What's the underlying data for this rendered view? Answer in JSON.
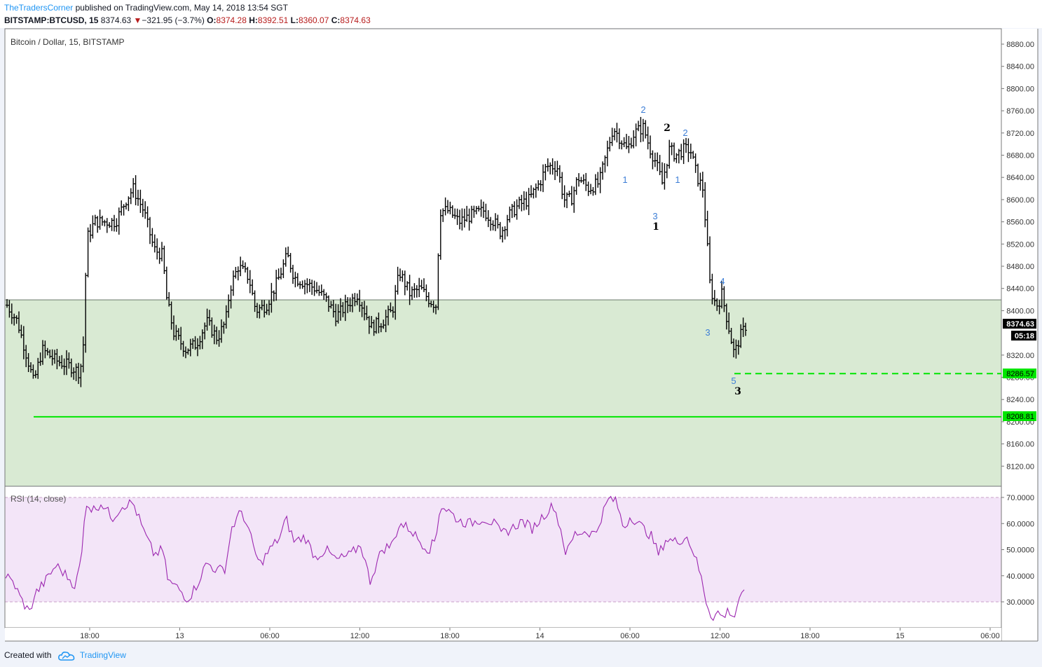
{
  "header": {
    "author": "TheTradersCorner",
    "published_text": " published on TradingView.com, May 14, 2018 13:54 SGT",
    "symbol": "BITSTAMP:BTCUSD, 15",
    "last": "8374.63",
    "change": "−321.95 (−3.7%)",
    "o_label": "O:",
    "o_value": "8374.28",
    "h_label": "H:",
    "h_value": "8392.51",
    "l_label": "L:",
    "l_value": "8360.07",
    "c_label": "C:",
    "c_value": "8374.63"
  },
  "footer": {
    "created_with": "Created with",
    "brand": "TradingView"
  },
  "colors": {
    "bar": "#000000",
    "zone_fill": "#d9ead3",
    "rsi_band": "#f3e5f8",
    "rsi_line": "#9c27b0",
    "support": "#00e600",
    "wave_blue": "#3d7ed6",
    "wave_black": "#000000"
  },
  "main": {
    "title": "Bitcoin / Dollar, 15, BITSTAMP",
    "price_ticks": [
      "8880.00",
      "8840.00",
      "8800.00",
      "8760.00",
      "8720.00",
      "8680.00",
      "8640.00",
      "8600.00",
      "8560.00",
      "8520.00",
      "8480.00",
      "8440.00",
      "8400.00",
      "8320.00",
      "8280.00",
      "8240.00",
      "8200.00",
      "8160.00",
      "8120.00"
    ],
    "current_price": "8374.63",
    "countdown": "05:18",
    "level_dashed": "8286.57",
    "level_solid": "8208.81",
    "time_labels": [
      "18:00",
      "13",
      "06:00",
      "12:00",
      "18:00",
      "14",
      "06:00",
      "12:00",
      "18:00",
      "15",
      "06:00"
    ],
    "wave_labels": [
      {
        "text": "2",
        "color": "blue"
      },
      {
        "text": "2",
        "color": "black"
      },
      {
        "text": "2",
        "color": "blue"
      },
      {
        "text": "1",
        "color": "blue"
      },
      {
        "text": "1",
        "color": "blue"
      },
      {
        "text": "3",
        "color": "blue"
      },
      {
        "text": "1",
        "color": "black"
      },
      {
        "text": "4",
        "color": "blue"
      },
      {
        "text": "3",
        "color": "blue"
      },
      {
        "text": "5",
        "color": "blue"
      },
      {
        "text": "3",
        "color": "black"
      }
    ]
  },
  "rsi": {
    "title": "RSI (14, close)",
    "ticks": [
      "70.0000",
      "60.0000",
      "50.0000",
      "40.0000",
      "30.0000"
    ]
  },
  "chart_data": {
    "type": "line",
    "price_ohlc_close_profile": [
      {
        "t": "12 18:00",
        "p": 8340
      },
      {
        "t": "12 21:00",
        "p": 8600
      },
      {
        "t": "13 00:00",
        "p": 8350
      },
      {
        "t": "13 03:00",
        "p": 8330
      },
      {
        "t": "13 06:00",
        "p": 8480
      },
      {
        "t": "13 12:00",
        "p": 8400
      },
      {
        "t": "13 17:30",
        "p": 8420
      },
      {
        "t": "13 18:00",
        "p": 8600
      },
      {
        "t": "14 00:00",
        "p": 8660
      },
      {
        "t": "14 05:00",
        "p": 8740
      },
      {
        "t": "14 08:00",
        "p": 8690
      },
      {
        "t": "14 11:00",
        "p": 8450
      },
      {
        "t": "14 13:00",
        "p": 8286.57
      },
      {
        "t": "14 13:54",
        "p": 8374.63
      }
    ],
    "rsi_ylim": [
      22,
      72
    ],
    "price_ylim": [
      8080,
      8900
    ]
  }
}
